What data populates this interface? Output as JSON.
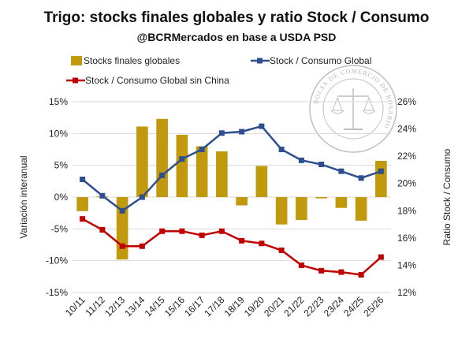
{
  "chart_data": {
    "type": "bar+line",
    "title": "Trigo:  stocks finales globales y ratio Stock / Consumo",
    "subtitle": "@BCRMercados en base a USDA PSD",
    "categories": [
      "10/11",
      "11/12",
      "12/13",
      "13/14",
      "14/15",
      "15/16",
      "16/17",
      "17/18",
      "18/19",
      "19/20",
      "20/21",
      "21/22",
      "22/23",
      "23/24",
      "24/25",
      "25/26"
    ],
    "series": [
      {
        "name": "Stocks finales globales",
        "type": "bar",
        "axis": "left",
        "color": "#c09a0c",
        "values": [
          -2.2,
          0.1,
          -9.8,
          11.1,
          12.3,
          9.8,
          8.0,
          7.2,
          -1.3,
          4.9,
          -4.3,
          -3.6,
          -0.2,
          -1.7,
          -3.7,
          5.7
        ]
      },
      {
        "name": "Stock / Consumo Global",
        "type": "line",
        "axis": "right",
        "color": "#2e4f8f",
        "values": [
          20.3,
          19.1,
          18.0,
          19.0,
          20.6,
          21.8,
          22.5,
          23.7,
          23.8,
          24.2,
          22.5,
          21.7,
          21.4,
          20.9,
          20.4,
          20.9
        ]
      },
      {
        "name": "Stock / Consumo Global sin China",
        "type": "line",
        "axis": "right",
        "color": "#c00000",
        "values": [
          17.4,
          16.6,
          15.4,
          15.4,
          16.5,
          16.5,
          16.2,
          16.5,
          15.8,
          15.6,
          15.1,
          14.0,
          13.6,
          13.5,
          13.3,
          14.6
        ]
      }
    ],
    "y_left": {
      "label": "Variación interanual",
      "ylim": [
        -15,
        15
      ],
      "ticks": [
        -15,
        -10,
        -5,
        0,
        5,
        10,
        15
      ],
      "tick_labels": [
        "-15%",
        "-10%",
        "-5%",
        "0%",
        "5%",
        "10%",
        "15%"
      ]
    },
    "y_right": {
      "label": "Ratio Stock / Consumo",
      "ylim": [
        12,
        26
      ],
      "ticks": [
        12,
        14,
        16,
        18,
        20,
        22,
        24,
        26
      ],
      "tick_labels": [
        "12%",
        "14%",
        "16%",
        "18%",
        "20%",
        "22%",
        "24%",
        "26%"
      ]
    },
    "legend": [
      "Stocks finales globales",
      "Stock / Consumo Global",
      "Stock / Consumo Global sin China"
    ],
    "legend_position": "top",
    "grid": true
  },
  "watermark": {
    "text": "BOLSA DE COMERCIO DE ROSARIO"
  }
}
